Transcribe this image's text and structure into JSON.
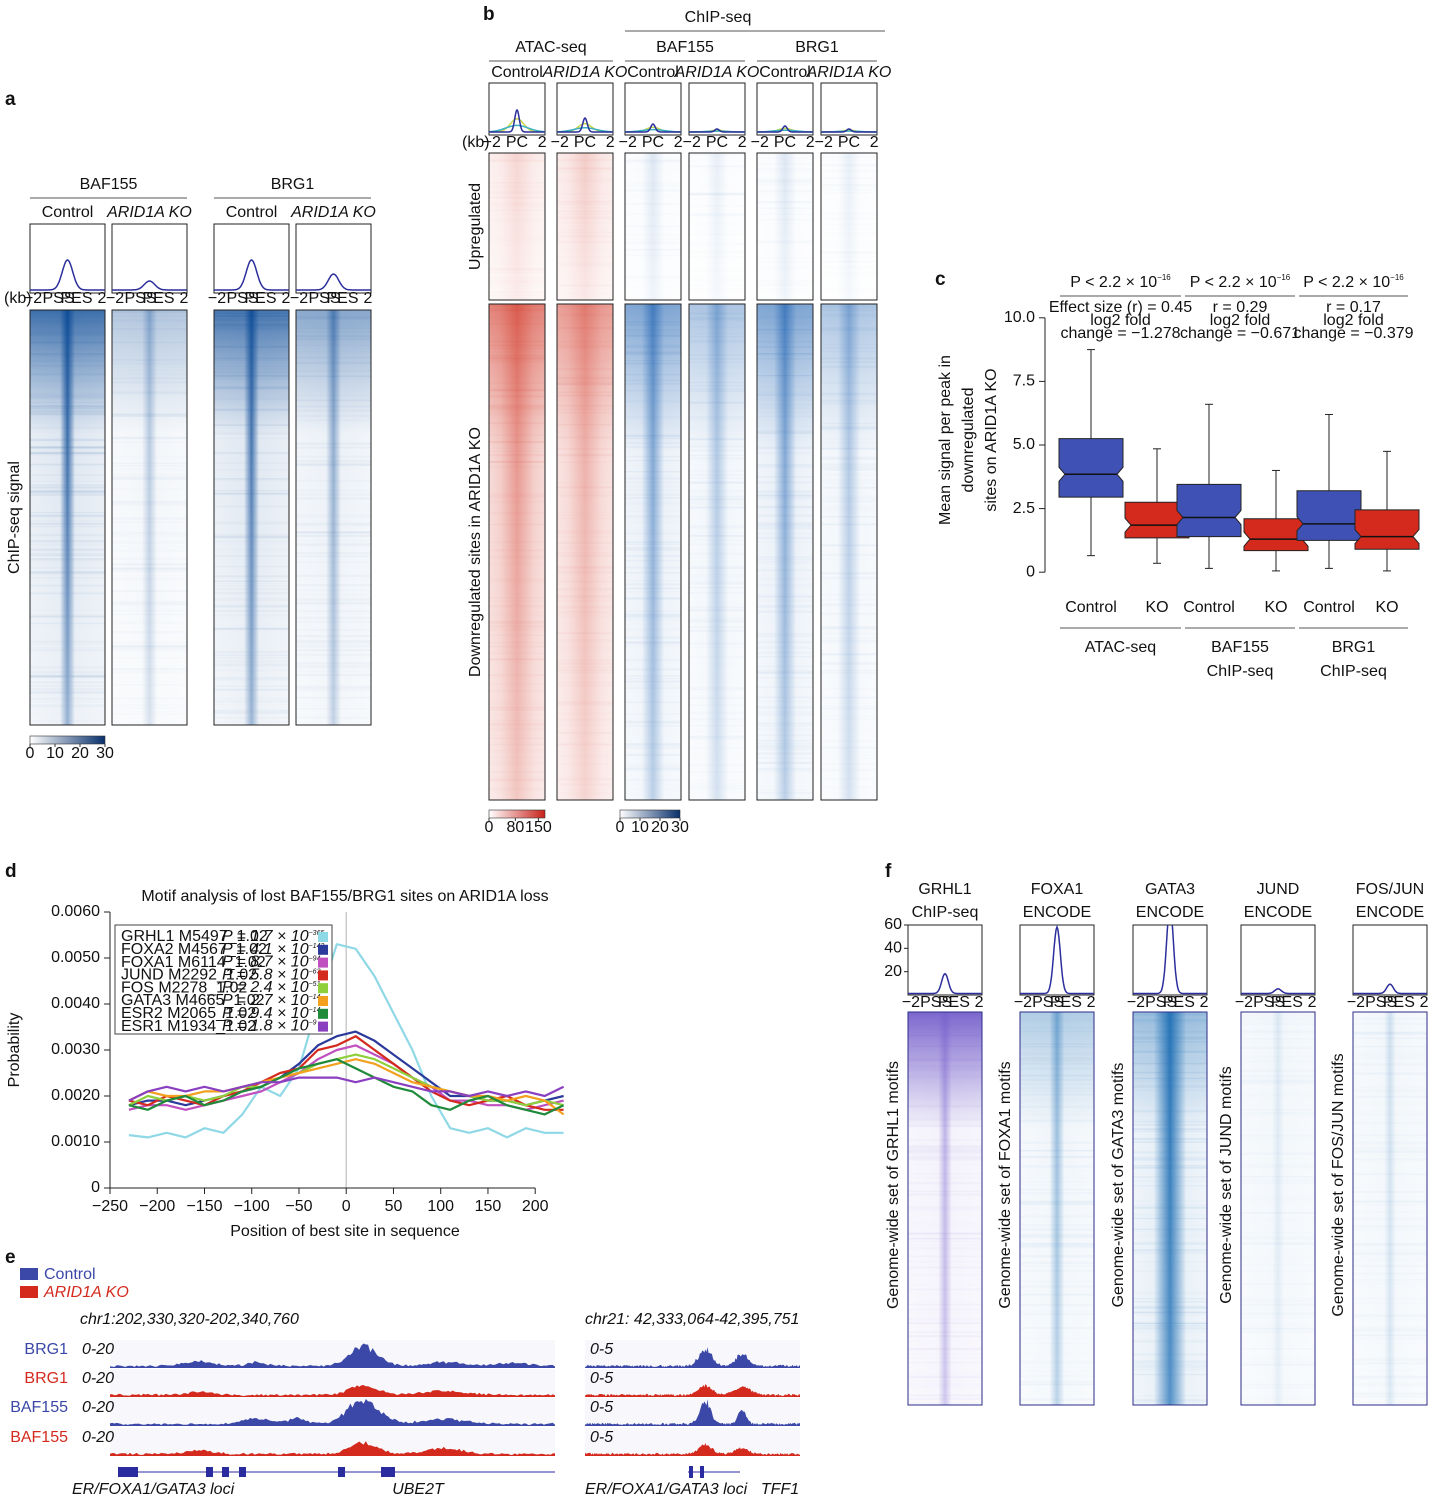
{
  "chart_data": [
    {
      "type": "heatmap",
      "panel": "a",
      "groups": [
        {
          "name": "BAF155",
          "columns": [
            "Control",
            "ARID1A KO"
          ]
        },
        {
          "name": "BRG1",
          "columns": [
            "Control",
            "ARID1A KO"
          ]
        }
      ],
      "row_label": "ChIP-seq signal",
      "x_unit": "(kb)",
      "xtick_labels": [
        "−2",
        "PSS",
        "PES",
        "2"
      ],
      "colorbar": {
        "lim": [
          0,
          30
        ],
        "ticks": [
          0,
          10,
          20,
          30
        ],
        "colors": [
          "#ffffff",
          "#08306b"
        ]
      }
    },
    {
      "type": "heatmap",
      "panel": "b",
      "header": "ChIP-seq",
      "groups": [
        {
          "name": "ATAC-seq",
          "columns": [
            "Control",
            "ARID1A KO"
          ]
        },
        {
          "name": "BAF155",
          "columns": [
            "Control",
            "ARID1A KO"
          ]
        },
        {
          "name": "BRG1",
          "columns": [
            "Control",
            "ARID1A KO"
          ]
        }
      ],
      "row_groups": [
        "Upregulated",
        "Downregulated sites in ARID1A KO"
      ],
      "x_unit": "(kb)",
      "xtick_labels": [
        "−2",
        "PC",
        "2"
      ],
      "colorbar": [
        {
          "lim": [
            0,
            170
          ],
          "ticks": [
            0,
            80,
            150
          ],
          "colors": [
            "#ffffff",
            "#c8211a"
          ]
        },
        {
          "lim": [
            0,
            30
          ],
          "ticks": [
            0,
            10,
            20,
            30
          ],
          "colors": [
            "#ffffff",
            "#08306b"
          ]
        }
      ]
    },
    {
      "type": "box",
      "panel": "c",
      "categories": [
        "Control",
        "KO",
        "Control",
        "KO",
        "Control",
        "KO"
      ],
      "colors": [
        "#3f51b5",
        "#d42a1e",
        "#3f51b5",
        "#d42a1e",
        "#3f51b5",
        "#d42a1e"
      ],
      "min": [
        0.65,
        0.35,
        0.15,
        0.05,
        0.15,
        0.05
      ],
      "q1": [
        2.95,
        1.35,
        1.4,
        0.85,
        1.25,
        0.9
      ],
      "median": [
        3.85,
        1.85,
        2.15,
        1.3,
        1.9,
        1.4
      ],
      "q3": [
        5.25,
        2.75,
        3.45,
        2.1,
        3.2,
        2.45
      ],
      "max": [
        8.75,
        4.85,
        6.6,
        4.0,
        6.2,
        4.75
      ],
      "groups": [
        [
          "ATAC-seq"
        ],
        [
          "BAF155",
          "ChIP-seq"
        ],
        [
          "BRG1",
          "ChIP-seq"
        ]
      ],
      "stats": [
        {
          "p": "P < 2.2 × 10",
          "p_exp": "−16",
          "lines": [
            "Effect size (r) = 0.45",
            "log2 fold",
            "change = −1.278"
          ]
        },
        {
          "p": "P < 2.2 × 10",
          "p_exp": "−16",
          "lines": [
            "r = 0.29",
            "log2 fold",
            "change = −0.671"
          ]
        },
        {
          "p": "P < 2.2 × 10",
          "p_exp": "−16",
          "lines": [
            "r = 0.17",
            "log2 fold",
            "change  = −0.379"
          ]
        }
      ],
      "ylabel": [
        "Mean signal per peak in",
        "downregulated",
        "sites on ARID1A KO"
      ],
      "ylim": [
        -0.7,
        10.7
      ],
      "yticks": [
        0,
        2.5,
        {
          "value": 5,
          "label": "5.0"
        },
        7.5,
        {
          "value": 10,
          "label": "10.0"
        }
      ]
    },
    {
      "type": "line",
      "panel": "d",
      "title": "Motif analysis of lost BAF155/BRG1 sites on ARID1A loss",
      "xlabel": "Position of best site in sequence",
      "ylabel": "Probability",
      "x": [
        -230,
        -210,
        -190,
        -170,
        -150,
        -130,
        -110,
        -90,
        -70,
        -50,
        -30,
        -10,
        10,
        30,
        50,
        70,
        90,
        110,
        130,
        150,
        170,
        190,
        210,
        230
      ],
      "series": [
        {
          "name": "GRHL1 M5497_1.02",
          "p": "P = 1.7 × 10",
          "p_exp": "−365",
          "color": "#8fd8e6",
          "values": [
            0.00115,
            0.0011,
            0.0012,
            0.0011,
            0.0013,
            0.0012,
            0.0016,
            0.0022,
            0.002,
            0.0026,
            0.004,
            0.0053,
            0.0052,
            0.0046,
            0.0038,
            0.003,
            0.002,
            0.0013,
            0.0012,
            0.0013,
            0.0011,
            0.0013,
            0.0012,
            0.0012
          ]
        },
        {
          "name": "FOXA2 M4567_1.02",
          "p": "P = 4.1 × 10",
          "p_exp": "−142",
          "color": "#2b3a9b",
          "values": [
            0.0018,
            0.0019,
            0.0019,
            0.0018,
            0.0019,
            0.002,
            0.0021,
            0.0022,
            0.0024,
            0.0027,
            0.0031,
            0.0033,
            0.0034,
            0.0032,
            0.0029,
            0.0026,
            0.0023,
            0.002,
            0.002,
            0.0019,
            0.0019,
            0.0018,
            0.0019,
            0.002
          ]
        },
        {
          "name": "FOXA1 M6114_1.02",
          "p": "P = 8.7 × 10",
          "p_exp": "−94",
          "color": "#c04fc0",
          "values": [
            0.0017,
            0.0018,
            0.0018,
            0.0017,
            0.0018,
            0.0019,
            0.002,
            0.0021,
            0.0023,
            0.0025,
            0.0028,
            0.003,
            0.0031,
            0.0029,
            0.0027,
            0.0024,
            0.0022,
            0.0019,
            0.0019,
            0.0018,
            0.0018,
            0.0017,
            0.0018,
            0.0019
          ]
        },
        {
          "name": "JUND M2292_1.02",
          "p": "P = 5.8 × 10",
          "p_exp": "−63",
          "color": "#d42a1e",
          "values": [
            0.0019,
            0.0018,
            0.002,
            0.0019,
            0.0018,
            0.002,
            0.0021,
            0.0023,
            0.0025,
            0.0026,
            0.003,
            0.0031,
            0.0033,
            0.003,
            0.0027,
            0.0024,
            0.0021,
            0.0019,
            0.0018,
            0.0019,
            0.002,
            0.0018,
            0.0017,
            0.0017
          ]
        },
        {
          "name": "FOS M2278_1.02",
          "p": "P = 2.4 × 10",
          "p_exp": "−51",
          "color": "#8fcf3b",
          "values": [
            0.0018,
            0.002,
            0.0019,
            0.002,
            0.0019,
            0.002,
            0.0022,
            0.0022,
            0.0024,
            0.0025,
            0.0027,
            0.0028,
            0.0029,
            0.0028,
            0.0026,
            0.0024,
            0.0022,
            0.0021,
            0.002,
            0.0019,
            0.0019,
            0.0018,
            0.0019,
            0.0018
          ]
        },
        {
          "name": "GATA3 M4665_1.02",
          "p": "P = 2.7 × 10",
          "p_exp": "−14",
          "color": "#f2a01e",
          "values": [
            0.0019,
            0.0021,
            0.002,
            0.002,
            0.0021,
            0.0021,
            0.0022,
            0.0023,
            0.0024,
            0.0025,
            0.0026,
            0.0027,
            0.0028,
            0.0027,
            0.0025,
            0.0023,
            0.0022,
            0.0021,
            0.002,
            0.002,
            0.0019,
            0.002,
            0.0019,
            0.0016
          ]
        },
        {
          "name": "ESR2 M2065_1.02",
          "p": "P = 9.4 × 10",
          "p_exp": "−14",
          "color": "#1f8a3a",
          "values": [
            0.0018,
            0.0017,
            0.0019,
            0.002,
            0.0018,
            0.0019,
            0.0021,
            0.0022,
            0.0024,
            0.0026,
            0.0027,
            0.0028,
            0.0026,
            0.0024,
            0.0022,
            0.0021,
            0.0018,
            0.0017,
            0.0019,
            0.002,
            0.0018,
            0.0017,
            0.0016,
            0.0018
          ]
        },
        {
          "name": "ESR1 M1934_1.02",
          "p": "P = 1.8 × 10",
          "p_exp": "−9",
          "color": "#8a3fc0",
          "values": [
            0.0019,
            0.0021,
            0.0022,
            0.0021,
            0.0022,
            0.0021,
            0.0022,
            0.0023,
            0.0023,
            0.0024,
            0.0024,
            0.0024,
            0.0023,
            0.0024,
            0.0023,
            0.0022,
            0.0021,
            0.0021,
            0.002,
            0.0021,
            0.002,
            0.0021,
            0.002,
            0.0022
          ]
        }
      ],
      "xlim": [
        -250,
        240
      ],
      "xticks": [
        {
          "value": -250,
          "label": "−250"
        },
        {
          "value": -200,
          "label": "−200"
        },
        {
          "value": -150,
          "label": "−150"
        },
        {
          "value": -100,
          "label": "−100"
        },
        {
          "value": -50,
          "label": "−50"
        },
        0,
        50,
        100,
        150,
        200
      ],
      "ylim": [
        0,
        0.006
      ],
      "yticks": [
        0,
        {
          "value": 0.001,
          "label": "0.0010"
        },
        {
          "value": 0.002,
          "label": "0.0020"
        },
        {
          "value": 0.003,
          "label": "0.0030"
        },
        {
          "value": 0.004,
          "label": "0.0040"
        },
        {
          "value": 0.005,
          "label": "0.0050"
        },
        {
          "value": 0.006,
          "label": "0.0060"
        }
      ]
    },
    {
      "type": "tracks",
      "panel": "e",
      "legend": [
        {
          "name": "Control",
          "color": "#3b48a8"
        },
        {
          "name": "ARID1A KO",
          "color": "#d42a1e"
        }
      ],
      "track_names": [
        "BRG1",
        "BRG1",
        "BAF155",
        "BAF155"
      ],
      "loci": [
        {
          "region": "chr1:202,330,320-202,340,760",
          "ranges": [
            "0-20",
            "0-20",
            "0-20",
            "0-20"
          ],
          "genes": [
            "ER/FOXA1/GATA3 loci",
            "UBE2T"
          ]
        },
        {
          "region": "chr21: 42,333,064-42,395,751",
          "ranges": [
            "0-5",
            "0-5",
            "0-5",
            "0-5"
          ],
          "genes": [
            "ER/FOXA1/GATA3 loci",
            "TFF1"
          ]
        }
      ]
    },
    {
      "type": "heatmap_profile",
      "panel": "f",
      "columns": [
        {
          "title": [
            "GRHL1",
            "ChIP-seq"
          ],
          "row_label": "Genome-wide set of GRHL1 motifs",
          "peak": 17
        },
        {
          "title": [
            "FOXA1",
            "ENCODE"
          ],
          "row_label": "Genome-wide set of FOXA1 motifs",
          "peak": 57
        },
        {
          "title": [
            "GATA3",
            "ENCODE"
          ],
          "row_label": "Genome-wide set of GATA3 motifs",
          "peak": 75
        },
        {
          "title": [
            "JUND",
            "ENCODE"
          ],
          "row_label": "Genome-wide set of JUND motifs",
          "peak": 4
        },
        {
          "title": [
            "FOS/JUN",
            "ENCODE"
          ],
          "row_label": "Genome-wide set of FOS/JUN motifs",
          "peak": 8
        }
      ],
      "ylim": [
        0,
        60
      ],
      "yticks": [
        20,
        40,
        60
      ],
      "xtick_labels": [
        "−2",
        "PSS",
        "PES",
        "2"
      ]
    }
  ]
}
